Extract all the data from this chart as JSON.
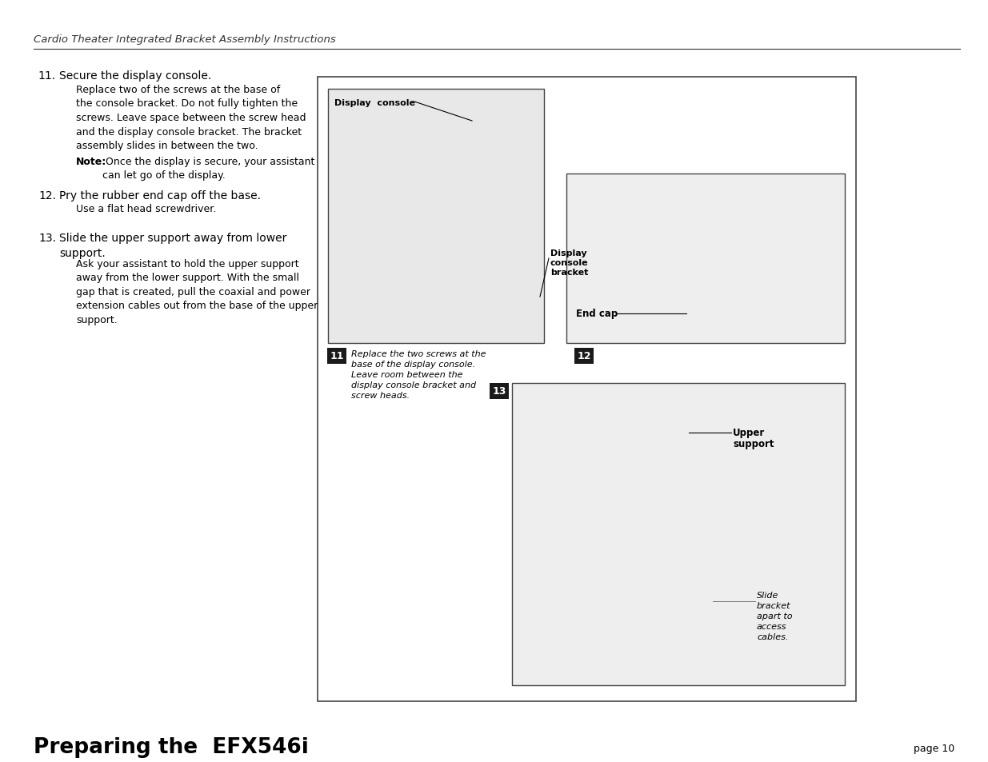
{
  "header_text": "Cardio Theater Integrated Bracket Assembly Instructions",
  "footer_title": "Preparing the  EFX546i",
  "footer_page": "page 10",
  "bg_color": "#ffffff",
  "step11_num": "11.",
  "step11_title": "Secure the display console.",
  "step11_body1": "Replace two of the screws at the base of\nthe console bracket. Do not fully tighten the\nscrews. Leave space between the screw head\nand the display console bracket. The bracket\nassembly slides in between the two.",
  "step11_note_bold": "Note:",
  "step11_note_rest": " Once the display is secure, your assistant\ncan let go of the display.",
  "step12_num": "12.",
  "step12_title": "Pry the rubber end cap off the base.",
  "step12_body": "Use a flat head screwdriver.",
  "step13_num": "13.",
  "step13_title": "Slide the upper support away from lower\nsupport.",
  "step13_body": "Ask your assistant to hold the upper support\naway from the lower support. With the small\ngap that is created, pull the coaxial and power\nextension cables out from the base of the upper\nsupport.",
  "label_display_console": "Display  console",
  "label_display_console_bracket_line1": "Display",
  "label_display_console_bracket_line2": "console",
  "label_display_console_bracket_line3": "bracket",
  "label_end_cap": "End cap",
  "label_upper_support_line1": "Upper",
  "label_upper_support_line2": "support",
  "label_slide_bracket_line1": "Slide",
  "label_slide_bracket_line2": "bracket",
  "label_slide_bracket_line3": "apart to",
  "label_slide_bracket_line4": "access",
  "label_slide_bracket_line5": "cables.",
  "caption11_line1": "Replace the two screws at the",
  "caption11_line2": "base of the display console.",
  "caption11_line3": "Leave room between the",
  "caption11_line4": "display console bracket and",
  "caption11_line5": "screw heads.",
  "badge_color": "#1a1a1a",
  "box_border_color": "#555555",
  "text_color": "#000000",
  "header_color": "#333333",
  "img11_gray": "#e8e8e8",
  "img12_gray": "#eeeeee",
  "img13_gray": "#eeeeee"
}
